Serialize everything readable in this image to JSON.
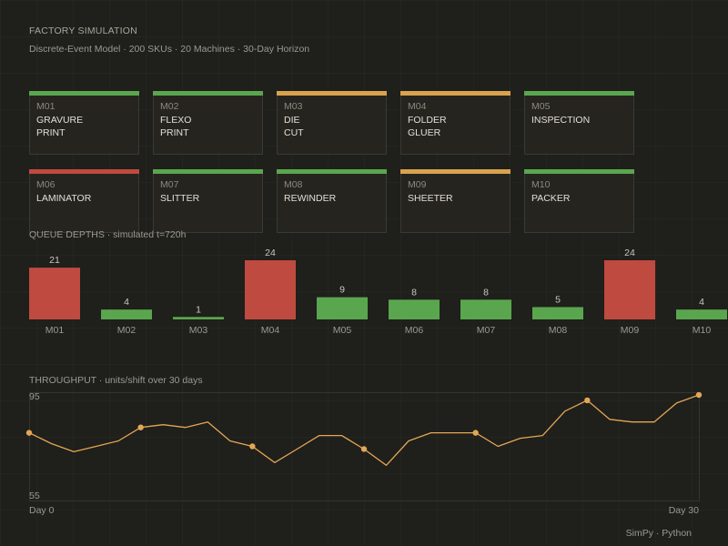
{
  "header": {
    "title": "FACTORY SIMULATION",
    "subtitle": "Discrete-Event Model · 200 SKUs · 20 Machines · 30-Day Horizon"
  },
  "colors": {
    "ok": "#5aa64e",
    "warn": "#d9a24e",
    "alert": "#bf4a3f",
    "line": "#e2a755",
    "background": "#1f1f1b"
  },
  "machines": [
    {
      "code": "M01",
      "name": "GRAVURE\nPRINT",
      "status": "ok"
    },
    {
      "code": "M02",
      "name": "FLEXO\nPRINT",
      "status": "ok"
    },
    {
      "code": "M03",
      "name": "DIE\nCUT",
      "status": "warn"
    },
    {
      "code": "M04",
      "name": "FOLDER\nGLUER",
      "status": "warn"
    },
    {
      "code": "M05",
      "name": "INSPECTION",
      "status": "ok"
    },
    {
      "code": "M06",
      "name": "LAMINATOR",
      "status": "alert"
    },
    {
      "code": "M07",
      "name": "SLITTER",
      "status": "ok"
    },
    {
      "code": "M08",
      "name": "REWINDER",
      "status": "ok"
    },
    {
      "code": "M09",
      "name": "SHEETER",
      "status": "warn"
    },
    {
      "code": "M10",
      "name": "PACKER",
      "status": "ok"
    }
  ],
  "queue": {
    "label": "QUEUE DEPTHS · simulated t=720h"
  },
  "throughput": {
    "label": "THROUGHPUT · units/shift over 30 days"
  },
  "footer": {
    "text": "SimPy · Python"
  },
  "chart_data": [
    {
      "type": "bar",
      "title": "",
      "categories": [
        "M01",
        "M02",
        "M03",
        "M04",
        "M05",
        "M06",
        "M07",
        "M08",
        "M09",
        "M10"
      ],
      "values": [
        21,
        4,
        1,
        24,
        9,
        8,
        8,
        5,
        24,
        4
      ],
      "bar_status": [
        "alert",
        "ok",
        "ok",
        "alert",
        "ok",
        "ok",
        "ok",
        "ok",
        "alert",
        "ok"
      ],
      "ylim": [
        0,
        24
      ],
      "data_labels": true,
      "grid": false
    },
    {
      "type": "line",
      "title": "",
      "x": [
        0,
        1,
        2,
        3,
        4,
        5,
        6,
        7,
        8,
        9,
        10,
        11,
        12,
        13,
        14,
        15,
        16,
        17,
        18,
        19,
        20,
        21,
        22,
        23,
        24,
        25,
        26,
        27,
        28,
        29,
        30
      ],
      "values": [
        80,
        76,
        73,
        75,
        77,
        82,
        83,
        82,
        84,
        77,
        75,
        69,
        74,
        79,
        79,
        74,
        68,
        77,
        80,
        80,
        80,
        75,
        78,
        79,
        88,
        92,
        85,
        84,
        84,
        91,
        94
      ],
      "marked_points": [
        0,
        5,
        10,
        15,
        20,
        25,
        30
      ],
      "ylim": [
        55,
        95
      ],
      "y_tick_labels": [
        "95",
        "55"
      ],
      "x_tick_labels": [
        "Day 0",
        "Day 30"
      ],
      "grid": false
    }
  ]
}
